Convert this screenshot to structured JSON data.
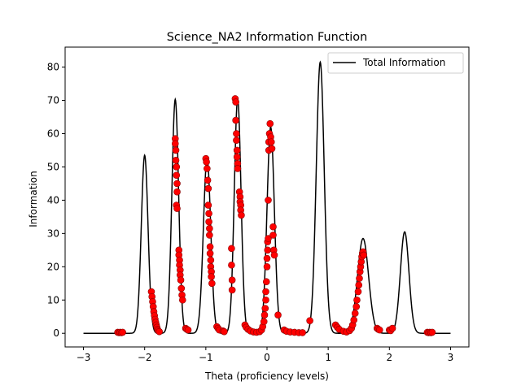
{
  "chart_data": {
    "type": "line",
    "title": "Science_NA2 Information Function",
    "xlabel": "Theta (proficiency levels)",
    "ylabel": "Information",
    "xlim": [
      -3.3,
      3.3
    ],
    "ylim": [
      -4.1,
      86.0
    ],
    "xticks": [
      -3,
      -2,
      -1,
      0,
      1,
      2,
      3
    ],
    "yticks": [
      0,
      10,
      20,
      30,
      40,
      50,
      60,
      70,
      80
    ],
    "grid": false,
    "legend": {
      "position": "top-right",
      "entries": [
        "Total Information"
      ]
    },
    "series": [
      {
        "name": "Total Information",
        "kind": "line",
        "color": "#000000",
        "peaks": [
          {
            "center": -2.0,
            "height": 53.5,
            "width": 0.055
          },
          {
            "center": -1.5,
            "height": 70.3,
            "width": 0.055
          },
          {
            "center": -0.98,
            "height": 52.5,
            "width": 0.06
          },
          {
            "center": -0.48,
            "height": 70.5,
            "width": 0.055
          },
          {
            "center": 0.06,
            "height": 62.0,
            "width": 0.06
          },
          {
            "center": 0.87,
            "height": 81.5,
            "width": 0.065
          },
          {
            "center": 1.57,
            "height": 28.5,
            "width": 0.09
          },
          {
            "center": 2.25,
            "height": 30.5,
            "width": 0.07
          }
        ]
      },
      {
        "name": "",
        "kind": "scatter",
        "color": "#ff0000",
        "edgecolor": "#8b0000",
        "points": [
          [
            -2.44,
            0.3
          ],
          [
            -2.42,
            0.2
          ],
          [
            -2.4,
            0.3
          ],
          [
            -2.38,
            0.2
          ],
          [
            -2.36,
            0.3
          ],
          [
            -1.89,
            12.5
          ],
          [
            -1.88,
            11.0
          ],
          [
            -1.87,
            9.5
          ],
          [
            -1.86,
            8.0
          ],
          [
            -1.85,
            6.5
          ],
          [
            -1.84,
            5.3
          ],
          [
            -1.83,
            4.2
          ],
          [
            -1.82,
            3.3
          ],
          [
            -1.81,
            2.5
          ],
          [
            -1.8,
            1.8
          ],
          [
            -1.79,
            1.2
          ],
          [
            -1.78,
            0.8
          ],
          [
            -1.76,
            0.5
          ],
          [
            -1.5,
            58.5
          ],
          [
            -1.5,
            57.0
          ],
          [
            -1.49,
            55.0
          ],
          [
            -1.49,
            52.0
          ],
          [
            -1.48,
            50.0
          ],
          [
            -1.48,
            47.5
          ],
          [
            -1.47,
            45.0
          ],
          [
            -1.47,
            42.5
          ],
          [
            -1.48,
            38.5
          ],
          [
            -1.47,
            37.5
          ],
          [
            -1.44,
            25.0
          ],
          [
            -1.44,
            23.5
          ],
          [
            -1.43,
            22.0
          ],
          [
            -1.43,
            20.5
          ],
          [
            -1.42,
            19.0
          ],
          [
            -1.42,
            17.5
          ],
          [
            -1.41,
            16.0
          ],
          [
            -1.4,
            13.5
          ],
          [
            -1.39,
            11.5
          ],
          [
            -1.38,
            10.0
          ],
          [
            -1.33,
            1.5
          ],
          [
            -1.31,
            1.2
          ],
          [
            -1.29,
            1.0
          ],
          [
            -1.0,
            52.5
          ],
          [
            -0.99,
            51.5
          ],
          [
            -0.98,
            49.5
          ],
          [
            -0.97,
            46.0
          ],
          [
            -0.96,
            43.5
          ],
          [
            -0.96,
            38.5
          ],
          [
            -0.95,
            36.0
          ],
          [
            -0.95,
            33.5
          ],
          [
            -0.94,
            31.5
          ],
          [
            -0.94,
            29.5
          ],
          [
            -0.93,
            26.0
          ],
          [
            -0.93,
            24.0
          ],
          [
            -0.92,
            22.0
          ],
          [
            -0.92,
            20.0
          ],
          [
            -0.91,
            18.5
          ],
          [
            -0.91,
            17.0
          ],
          [
            -0.9,
            15.0
          ],
          [
            -0.82,
            2.0
          ],
          [
            -0.8,
            1.5
          ],
          [
            -0.78,
            1.0
          ],
          [
            -0.72,
            0.7
          ],
          [
            -0.7,
            0.5
          ],
          [
            -0.58,
            25.5
          ],
          [
            -0.58,
            20.5
          ],
          [
            -0.57,
            16.0
          ],
          [
            -0.57,
            13.0
          ],
          [
            -0.52,
            70.5
          ],
          [
            -0.51,
            69.5
          ],
          [
            -0.51,
            64.0
          ],
          [
            -0.5,
            60.0
          ],
          [
            -0.5,
            58.0
          ],
          [
            -0.49,
            55.0
          ],
          [
            -0.49,
            53.0
          ],
          [
            -0.48,
            51.0
          ],
          [
            -0.48,
            49.5
          ],
          [
            -0.45,
            42.5
          ],
          [
            -0.44,
            41.0
          ],
          [
            -0.44,
            39.5
          ],
          [
            -0.43,
            38.5
          ],
          [
            -0.43,
            37.0
          ],
          [
            -0.42,
            35.5
          ],
          [
            -0.36,
            2.5
          ],
          [
            -0.34,
            1.8
          ],
          [
            -0.31,
            1.2
          ],
          [
            -0.27,
            0.7
          ],
          [
            -0.22,
            0.4
          ],
          [
            -0.17,
            0.3
          ],
          [
            -0.12,
            0.5
          ],
          [
            -0.09,
            1.0
          ],
          [
            -0.07,
            2.0
          ],
          [
            -0.05,
            3.5
          ],
          [
            -0.04,
            5.5
          ],
          [
            -0.03,
            7.5
          ],
          [
            -0.02,
            10.0
          ],
          [
            -0.02,
            12.5
          ],
          [
            -0.01,
            15.5
          ],
          [
            0.0,
            20.0
          ],
          [
            0.0,
            22.5
          ],
          [
            0.01,
            25.0
          ],
          [
            0.01,
            27.5
          ],
          [
            0.02,
            28.5
          ],
          [
            0.02,
            40.0
          ],
          [
            0.03,
            55.0
          ],
          [
            0.03,
            57.5
          ],
          [
            0.04,
            60.0
          ],
          [
            0.05,
            63.0
          ],
          [
            0.06,
            59.0
          ],
          [
            0.07,
            57.5
          ],
          [
            0.08,
            55.5
          ],
          [
            0.1,
            32.0
          ],
          [
            0.1,
            29.5
          ],
          [
            0.11,
            25.0
          ],
          [
            0.12,
            23.5
          ],
          [
            0.18,
            5.5
          ],
          [
            0.28,
            1.0
          ],
          [
            0.32,
            0.6
          ],
          [
            0.38,
            0.4
          ],
          [
            0.45,
            0.3
          ],
          [
            0.52,
            0.2
          ],
          [
            0.58,
            0.2
          ],
          [
            0.7,
            3.8
          ],
          [
            1.12,
            2.5
          ],
          [
            1.15,
            1.8
          ],
          [
            1.18,
            1.2
          ],
          [
            1.25,
            0.6
          ],
          [
            1.3,
            0.4
          ],
          [
            1.35,
            0.8
          ],
          [
            1.38,
            1.5
          ],
          [
            1.4,
            2.5
          ],
          [
            1.42,
            4.0
          ],
          [
            1.44,
            6.0
          ],
          [
            1.46,
            8.0
          ],
          [
            1.47,
            10.0
          ],
          [
            1.49,
            12.5
          ],
          [
            1.5,
            14.5
          ],
          [
            1.51,
            16.5
          ],
          [
            1.52,
            18.5
          ],
          [
            1.53,
            20.0
          ],
          [
            1.54,
            21.5
          ],
          [
            1.55,
            23.0
          ],
          [
            1.56,
            24.0
          ],
          [
            1.57,
            24.5
          ],
          [
            1.58,
            23.5
          ],
          [
            1.8,
            1.5
          ],
          [
            1.82,
            1.2
          ],
          [
            1.84,
            1.0
          ],
          [
            2.0,
            1.0
          ],
          [
            2.02,
            0.8
          ],
          [
            2.05,
            1.5
          ],
          [
            2.62,
            0.3
          ],
          [
            2.64,
            0.2
          ],
          [
            2.66,
            0.3
          ],
          [
            2.68,
            0.2
          ],
          [
            2.7,
            0.3
          ]
        ]
      }
    ]
  }
}
